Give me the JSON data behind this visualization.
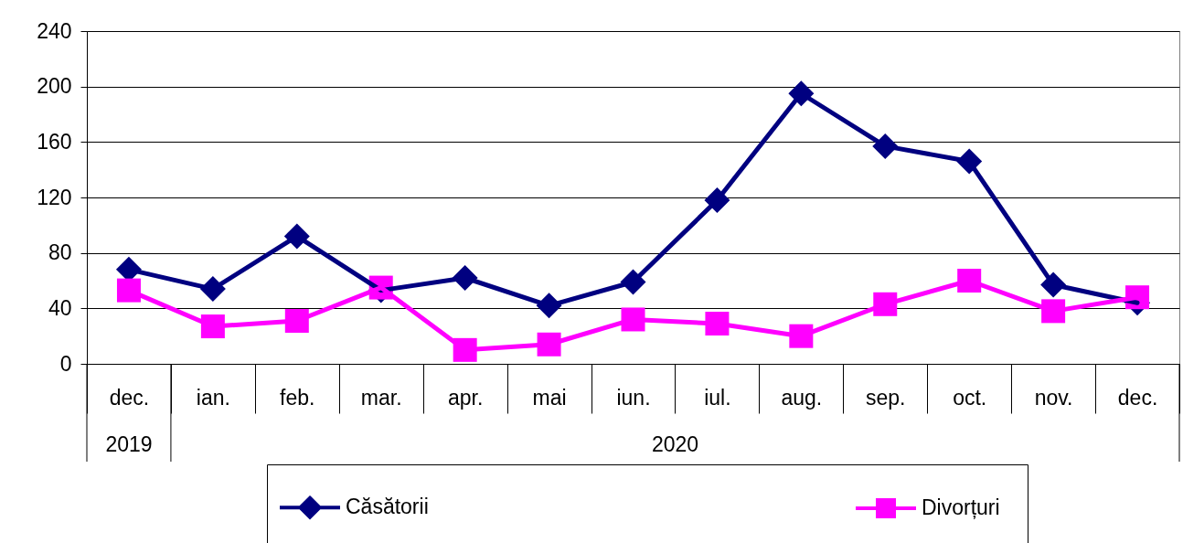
{
  "chart_data": {
    "type": "line",
    "categories": [
      "dec.",
      "ian.",
      "feb.",
      "mar.",
      "apr.",
      "mai",
      "iun.",
      "iul.",
      "aug.",
      "sep.",
      "oct.",
      "nov.",
      "dec."
    ],
    "series": [
      {
        "name": "Căsătorii",
        "color": "#000080",
        "marker": "diamond",
        "values": [
          68,
          54,
          92,
          53,
          62,
          42,
          59,
          118,
          195,
          157,
          146,
          57,
          44
        ]
      },
      {
        "name": "Divorțuri",
        "color": "#ff00ff",
        "marker": "square",
        "values": [
          53,
          27,
          31,
          55,
          10,
          14,
          32,
          29,
          20,
          43,
          60,
          38,
          48
        ]
      }
    ],
    "ylim": [
      0,
      240
    ],
    "yticks": [
      0,
      40,
      80,
      120,
      160,
      200,
      240
    ],
    "grid": "y",
    "legend": "bottom",
    "line_style": "solid",
    "annotations": [
      "2019",
      "2020"
    ]
  }
}
